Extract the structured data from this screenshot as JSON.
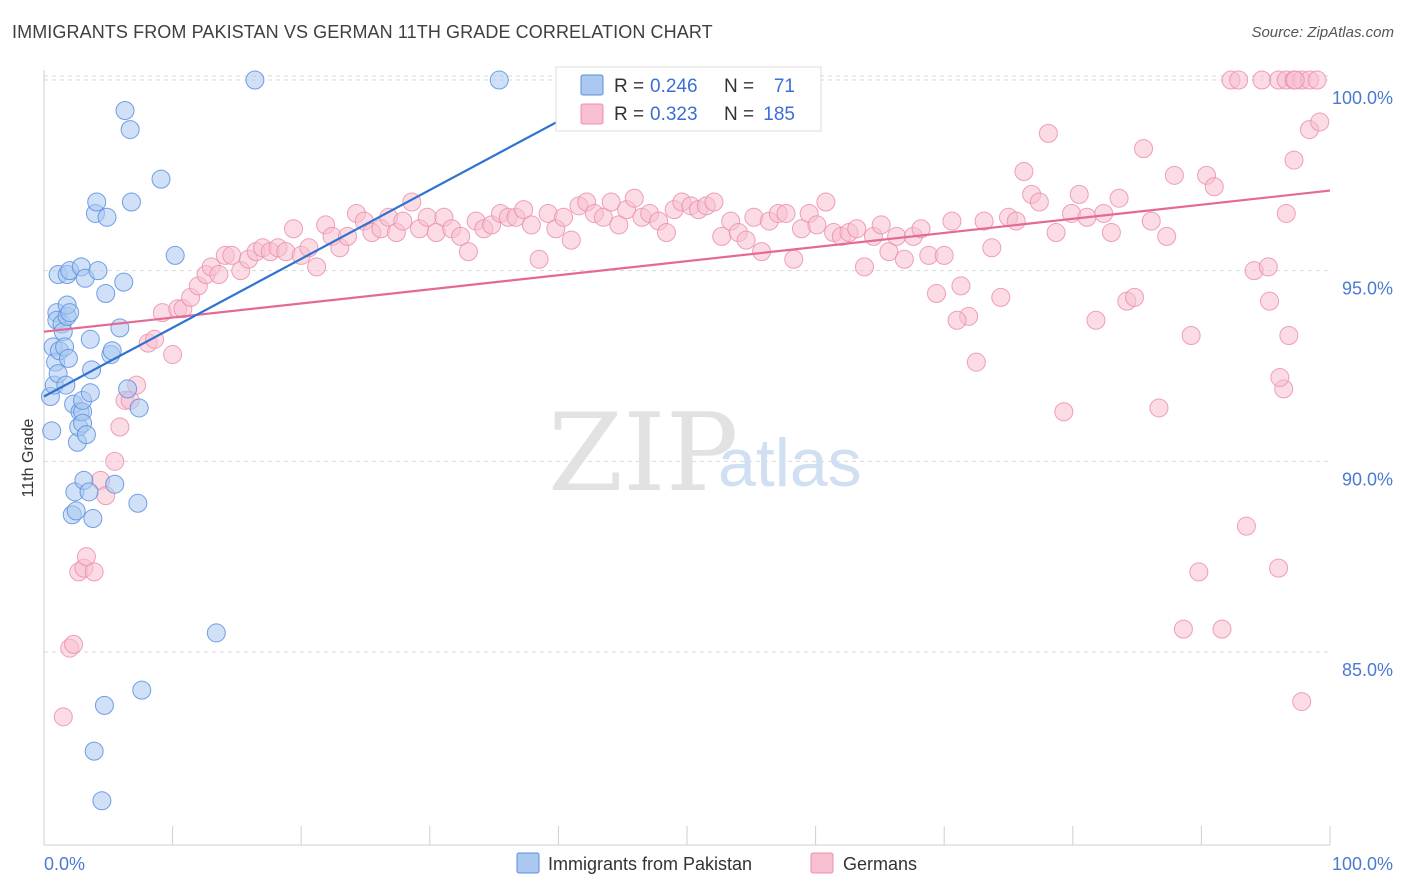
{
  "header": {
    "title": "IMMIGRANTS FROM PAKISTAN VS GERMAN 11TH GRADE CORRELATION CHART",
    "source": "Source: ZipAtlas.com"
  },
  "watermark": {
    "zip": "ZIP",
    "atlas": "atlas"
  },
  "legend": {
    "rows": [
      {
        "r_label": "R =",
        "r_value": "0.246",
        "n_label": "N =",
        "n_value": "71"
      },
      {
        "r_label": "R =",
        "r_value": "0.323",
        "n_label": "N =",
        "n_value": "185"
      }
    ]
  },
  "bottom_legend": {
    "items": [
      {
        "label": "Immigrants from Pakistan"
      },
      {
        "label": "Germans"
      }
    ]
  },
  "colors": {
    "pakistan_fill": "#aac8f0",
    "pakistan_stroke": "#5b8fe0",
    "pakistan_line": "#2f72d0",
    "germans_fill": "#f7bfd0",
    "germans_stroke": "#ec8fae",
    "germans_line": "#e46a95",
    "tick_label": "#4a7bd0",
    "grid": "#d9d9d9"
  },
  "chart_data": {
    "type": "scatter",
    "title": "IMMIGRANTS FROM PAKISTAN VS GERMAN 11TH GRADE CORRELATION CHART",
    "xlabel": "",
    "ylabel": "11th Grade",
    "xlim": [
      0,
      100
    ],
    "ylim": [
      80.2,
      100.6
    ],
    "x_tick_labels": [
      "0.0%",
      "100.0%"
    ],
    "y_ticks": [
      85.0,
      90.0,
      95.0,
      100.0
    ],
    "y_tick_labels": [
      "85.0%",
      "90.0%",
      "95.0%",
      "100.0%"
    ],
    "grid": "horizontal dashed",
    "series": [
      {
        "name": "Immigrants from Pakistan",
        "R": 0.246,
        "N": 71,
        "trend": {
          "x0": 0,
          "y0": 91.7,
          "x1": 41,
          "y1": 99.1
        },
        "points": [
          [
            0.5,
            91.7
          ],
          [
            0.6,
            90.8
          ],
          [
            0.7,
            93.0
          ],
          [
            0.8,
            92.0
          ],
          [
            0.9,
            92.6
          ],
          [
            1.0,
            93.9
          ],
          [
            1.0,
            93.7
          ],
          [
            1.1,
            92.3
          ],
          [
            1.1,
            94.9
          ],
          [
            1.2,
            92.9
          ],
          [
            1.4,
            93.6
          ],
          [
            1.5,
            93.4
          ],
          [
            1.6,
            93.0
          ],
          [
            1.7,
            92.0
          ],
          [
            1.8,
            93.8
          ],
          [
            1.8,
            94.1
          ],
          [
            1.8,
            94.9
          ],
          [
            1.9,
            92.7
          ],
          [
            2.0,
            93.9
          ],
          [
            2.0,
            95.0
          ],
          [
            2.2,
            88.6
          ],
          [
            2.3,
            91.5
          ],
          [
            2.4,
            89.2
          ],
          [
            2.5,
            88.7
          ],
          [
            2.6,
            90.5
          ],
          [
            2.7,
            90.9
          ],
          [
            2.8,
            91.3
          ],
          [
            2.9,
            95.1
          ],
          [
            3.0,
            91.3
          ],
          [
            3.0,
            91.0
          ],
          [
            3.0,
            91.6
          ],
          [
            3.1,
            89.5
          ],
          [
            3.2,
            94.8
          ],
          [
            3.3,
            90.7
          ],
          [
            3.5,
            89.2
          ],
          [
            3.6,
            91.8
          ],
          [
            3.6,
            93.2
          ],
          [
            3.7,
            92.4
          ],
          [
            3.8,
            88.5
          ],
          [
            3.9,
            82.4
          ],
          [
            4.0,
            96.5
          ],
          [
            4.1,
            96.8
          ],
          [
            4.2,
            95.0
          ],
          [
            4.5,
            81.1
          ],
          [
            4.7,
            83.6
          ],
          [
            4.8,
            94.4
          ],
          [
            4.9,
            96.4
          ],
          [
            5.2,
            92.8
          ],
          [
            5.3,
            92.9
          ],
          [
            5.5,
            89.4
          ],
          [
            5.9,
            93.5
          ],
          [
            6.2,
            94.7
          ],
          [
            6.3,
            99.2
          ],
          [
            6.5,
            91.9
          ],
          [
            6.7,
            98.7
          ],
          [
            6.8,
            96.8
          ],
          [
            7.3,
            88.9
          ],
          [
            7.4,
            91.4
          ],
          [
            7.6,
            84.0
          ],
          [
            9.1,
            97.4
          ],
          [
            10.2,
            95.4
          ],
          [
            13.4,
            85.5
          ],
          [
            16.4,
            100.0
          ],
          [
            35.4,
            100.0
          ]
        ]
      },
      {
        "name": "Germans",
        "R": 0.323,
        "N": 185,
        "trend": {
          "x0": 0,
          "y0": 93.4,
          "x1": 100,
          "y1": 97.1
        },
        "points": [
          [
            1.5,
            83.3
          ],
          [
            2.0,
            85.1
          ],
          [
            2.3,
            85.2
          ],
          [
            2.7,
            87.1
          ],
          [
            3.1,
            87.2
          ],
          [
            3.3,
            87.5
          ],
          [
            3.9,
            87.1
          ],
          [
            4.4,
            89.5
          ],
          [
            4.8,
            89.1
          ],
          [
            5.5,
            90.0
          ],
          [
            5.9,
            90.9
          ],
          [
            6.3,
            91.6
          ],
          [
            6.7,
            91.6
          ],
          [
            7.2,
            92.0
          ],
          [
            8.1,
            93.1
          ],
          [
            8.6,
            93.2
          ],
          [
            9.2,
            93.9
          ],
          [
            10.0,
            92.8
          ],
          [
            10.4,
            94.0
          ],
          [
            10.8,
            94.0
          ],
          [
            11.4,
            94.3
          ],
          [
            12.0,
            94.6
          ],
          [
            12.6,
            94.9
          ],
          [
            13.0,
            95.1
          ],
          [
            13.6,
            94.9
          ],
          [
            14.1,
            95.4
          ],
          [
            14.6,
            95.4
          ],
          [
            15.3,
            95.0
          ],
          [
            15.9,
            95.3
          ],
          [
            16.5,
            95.5
          ],
          [
            17.0,
            95.6
          ],
          [
            17.6,
            95.5
          ],
          [
            18.2,
            95.6
          ],
          [
            18.8,
            95.5
          ],
          [
            19.4,
            96.1
          ],
          [
            20.0,
            95.4
          ],
          [
            20.6,
            95.6
          ],
          [
            21.2,
            95.1
          ],
          [
            21.9,
            96.2
          ],
          [
            22.4,
            95.9
          ],
          [
            23.0,
            95.6
          ],
          [
            23.6,
            95.9
          ],
          [
            24.3,
            96.5
          ],
          [
            24.9,
            96.3
          ],
          [
            25.5,
            96.0
          ],
          [
            26.2,
            96.1
          ],
          [
            26.8,
            96.4
          ],
          [
            27.4,
            96.0
          ],
          [
            27.9,
            96.3
          ],
          [
            28.6,
            96.8
          ],
          [
            29.2,
            96.1
          ],
          [
            29.8,
            96.4
          ],
          [
            30.5,
            96.0
          ],
          [
            31.1,
            96.4
          ],
          [
            31.7,
            96.1
          ],
          [
            32.4,
            95.9
          ],
          [
            33.0,
            95.5
          ],
          [
            33.6,
            96.3
          ],
          [
            34.2,
            96.1
          ],
          [
            34.8,
            96.2
          ],
          [
            35.5,
            96.5
          ],
          [
            36.1,
            96.4
          ],
          [
            36.7,
            96.4
          ],
          [
            37.3,
            96.6
          ],
          [
            37.9,
            96.2
          ],
          [
            38.5,
            95.3
          ],
          [
            39.2,
            96.5
          ],
          [
            39.8,
            96.1
          ],
          [
            40.4,
            96.4
          ],
          [
            41.0,
            95.8
          ],
          [
            41.6,
            96.7
          ],
          [
            42.2,
            96.8
          ],
          [
            42.8,
            96.5
          ],
          [
            43.5,
            96.4
          ],
          [
            44.1,
            96.8
          ],
          [
            44.7,
            96.2
          ],
          [
            45.3,
            96.6
          ],
          [
            45.9,
            96.9
          ],
          [
            46.5,
            96.4
          ],
          [
            47.1,
            96.5
          ],
          [
            47.8,
            96.3
          ],
          [
            48.4,
            96.0
          ],
          [
            49.0,
            96.6
          ],
          [
            49.6,
            96.8
          ],
          [
            50.3,
            96.7
          ],
          [
            50.9,
            96.6
          ],
          [
            51.5,
            96.7
          ],
          [
            52.1,
            96.8
          ],
          [
            52.7,
            95.9
          ],
          [
            53.4,
            96.3
          ],
          [
            54.0,
            96.0
          ],
          [
            54.6,
            95.8
          ],
          [
            55.2,
            96.4
          ],
          [
            55.8,
            95.5
          ],
          [
            56.4,
            96.3
          ],
          [
            57.1,
            96.5
          ],
          [
            57.7,
            96.5
          ],
          [
            58.3,
            95.3
          ],
          [
            58.9,
            96.1
          ],
          [
            59.5,
            96.5
          ],
          [
            60.1,
            96.2
          ],
          [
            60.8,
            96.8
          ],
          [
            61.4,
            96.0
          ],
          [
            62.0,
            95.9
          ],
          [
            62.6,
            96.0
          ],
          [
            63.2,
            96.1
          ],
          [
            63.8,
            95.1
          ],
          [
            64.5,
            95.9
          ],
          [
            65.1,
            96.2
          ],
          [
            65.7,
            95.5
          ],
          [
            66.3,
            95.9
          ],
          [
            66.9,
            95.3
          ],
          [
            67.6,
            95.9
          ],
          [
            68.2,
            96.1
          ],
          [
            68.8,
            95.4
          ],
          [
            69.4,
            94.4
          ],
          [
            70.0,
            95.4
          ],
          [
            70.6,
            96.3
          ],
          [
            71.3,
            94.6
          ],
          [
            71.9,
            93.8
          ],
          [
            72.5,
            92.6
          ],
          [
            73.1,
            96.3
          ],
          [
            73.7,
            95.6
          ],
          [
            74.4,
            94.3
          ],
          [
            75.0,
            96.4
          ],
          [
            75.6,
            96.3
          ],
          [
            76.2,
            97.6
          ],
          [
            76.8,
            97.0
          ],
          [
            77.4,
            96.8
          ],
          [
            78.1,
            98.6
          ],
          [
            78.7,
            96.0
          ],
          [
            79.3,
            91.3
          ],
          [
            79.9,
            96.5
          ],
          [
            80.5,
            97.0
          ],
          [
            81.1,
            96.4
          ],
          [
            81.8,
            93.7
          ],
          [
            82.4,
            96.5
          ],
          [
            83.0,
            96.0
          ],
          [
            83.6,
            96.9
          ],
          [
            84.2,
            94.2
          ],
          [
            84.8,
            94.3
          ],
          [
            85.5,
            98.2
          ],
          [
            86.1,
            96.3
          ],
          [
            86.7,
            91.4
          ],
          [
            87.3,
            95.9
          ],
          [
            87.9,
            97.5
          ],
          [
            88.6,
            85.6
          ],
          [
            89.2,
            93.3
          ],
          [
            89.8,
            87.1
          ],
          [
            90.4,
            97.5
          ],
          [
            91.0,
            97.2
          ],
          [
            91.6,
            85.6
          ],
          [
            92.3,
            100.0
          ],
          [
            92.9,
            100.0
          ],
          [
            93.5,
            88.3
          ],
          [
            94.1,
            95.0
          ],
          [
            94.7,
            100.0
          ],
          [
            95.3,
            94.2
          ],
          [
            96.0,
            100.0
          ],
          [
            96.6,
            100.0
          ],
          [
            97.2,
            100.0
          ],
          [
            97.8,
            100.0
          ],
          [
            98.4,
            100.0
          ],
          [
            99.0,
            100.0
          ],
          [
            71.0,
            93.7
          ],
          [
            96.4,
            91.9
          ],
          [
            97.2,
            97.9
          ],
          [
            96.8,
            93.3
          ],
          [
            98.4,
            98.7
          ],
          [
            96.1,
            92.2
          ],
          [
            97.8,
            83.7
          ],
          [
            96.0,
            87.2
          ],
          [
            96.6,
            96.5
          ],
          [
            99.2,
            98.9
          ],
          [
            97.3,
            100.0
          ],
          [
            95.2,
            95.1
          ]
        ]
      }
    ]
  }
}
